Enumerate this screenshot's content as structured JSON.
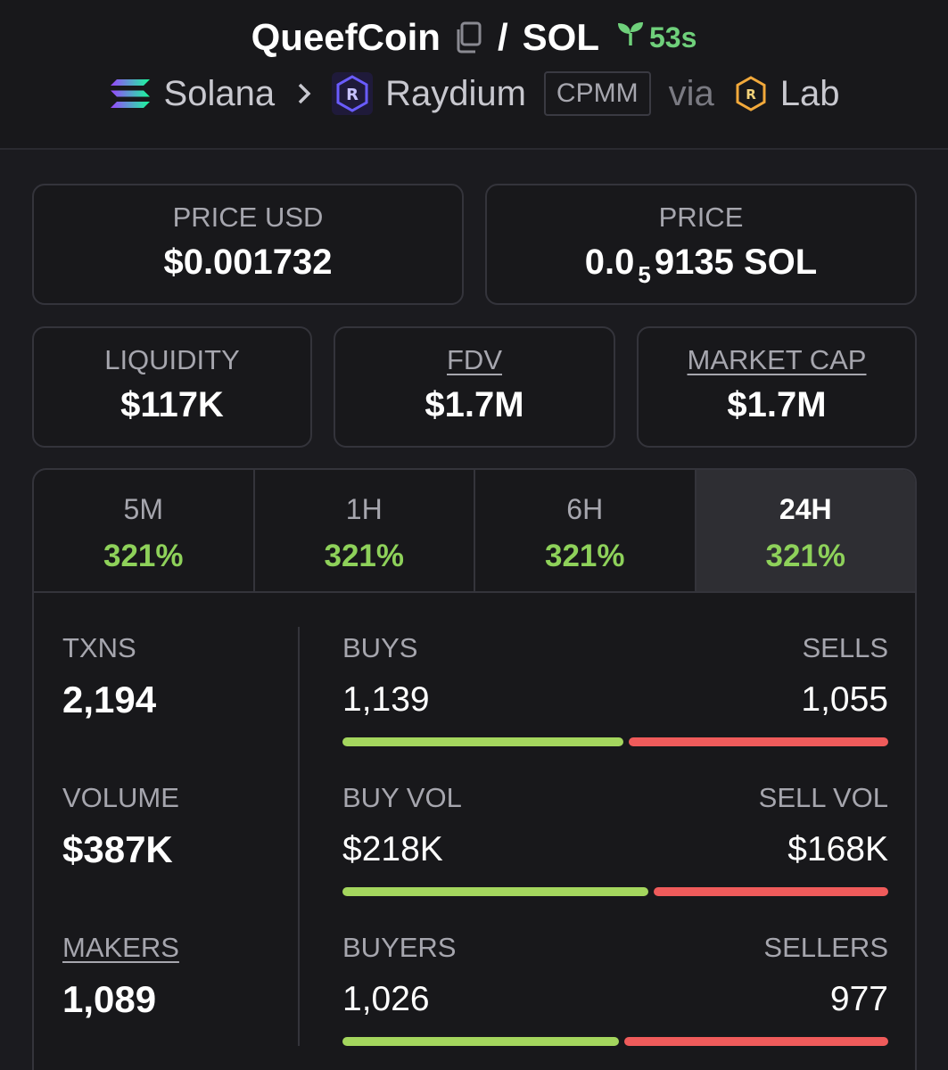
{
  "header": {
    "token": "QueefCoin",
    "slash": "/",
    "quote": "SOL",
    "age": "53s",
    "chain": "Solana",
    "dex": "Raydium",
    "pool_type": "CPMM",
    "via": "via",
    "launchpad": "Lab"
  },
  "prices": {
    "usd_label": "PRICE USD",
    "usd_value": "$0.001732",
    "native_label": "PRICE",
    "native_prefix": "0.0",
    "native_zeros": "5",
    "native_suffix": "9135 SOL"
  },
  "metrics": {
    "liquidity_label": "LIQUIDITY",
    "liquidity_value": "$117K",
    "fdv_label": "FDV",
    "fdv_value": "$1.7M",
    "mcap_label": "MARKET CAP",
    "mcap_value": "$1.7M"
  },
  "tabs": [
    {
      "label": "5M",
      "value": "321%"
    },
    {
      "label": "1H",
      "value": "321%"
    },
    {
      "label": "6H",
      "value": "321%"
    },
    {
      "label": "24H",
      "value": "321%"
    }
  ],
  "active_tab": "24H",
  "stats": {
    "txns_label": "TXNS",
    "txns_value": "2,194",
    "volume_label": "VOLUME",
    "volume_value": "$387K",
    "makers_label": "MAKERS",
    "makers_value": "1,089",
    "buys_label": "BUYS",
    "buys_value": "1,139",
    "sells_label": "SELLS",
    "sells_value": "1,055",
    "buys_ratio": 0.519,
    "buy_vol_label": "BUY VOL",
    "buy_vol_value": "$218K",
    "sell_vol_label": "SELL VOL",
    "sell_vol_value": "$168K",
    "buy_vol_ratio": 0.565,
    "buyers_label": "BUYERS",
    "buyers_value": "1,026",
    "sellers_label": "SELLERS",
    "sellers_value": "977",
    "buyers_ratio": 0.512
  },
  "colors": {
    "positive": "#8ed15a",
    "buy_bar": "#a4d65e",
    "sell_bar": "#ef5b5b",
    "age_green": "#6fd07b"
  }
}
